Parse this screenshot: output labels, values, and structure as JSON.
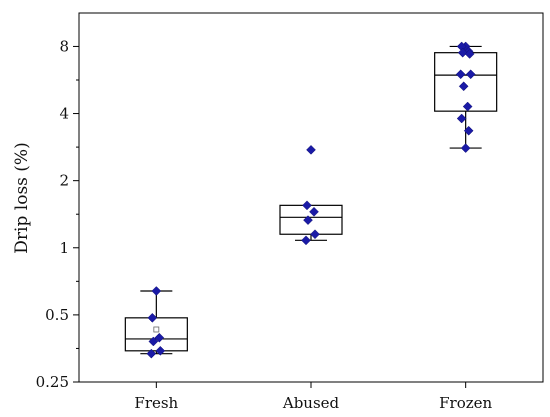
{
  "chart_data": {
    "type": "box",
    "ylabel": "Drip loss (%)",
    "xlabel": "",
    "yscale": "log2",
    "ylim": [
      0.25,
      11.3
    ],
    "yticks": [
      {
        "value": 0.25,
        "label": "0.25"
      },
      {
        "value": 0.5,
        "label": "0.5"
      },
      {
        "value": 1,
        "label": "1"
      },
      {
        "value": 2,
        "label": "2"
      },
      {
        "value": 4,
        "label": "4"
      },
      {
        "value": 8,
        "label": "8"
      }
    ],
    "categories": [
      "Fresh",
      "Abused",
      "Frozen"
    ],
    "boxes": [
      {
        "category": "Fresh",
        "whisker_low": 0.335,
        "q1": 0.345,
        "median": 0.39,
        "q3": 0.485,
        "whisker_high": 0.64,
        "mean": 0.43,
        "points": [
          0.64,
          0.485,
          0.395,
          0.38,
          0.345,
          0.335
        ]
      },
      {
        "category": "Abused",
        "whisker_low": 1.08,
        "q1": 1.15,
        "median": 1.37,
        "q3": 1.55,
        "whisker_high": 1.55,
        "mean": null,
        "points": [
          2.75,
          1.55,
          1.45,
          1.33,
          1.15,
          1.08
        ]
      },
      {
        "category": "Frozen",
        "whisker_low": 2.8,
        "q1": 4.1,
        "median": 5.95,
        "q3": 7.5,
        "whisker_high": 8.0,
        "mean": null,
        "points": [
          8.0,
          8.0,
          7.6,
          7.5,
          7.4,
          6.0,
          6.0,
          5.3,
          4.3,
          3.8,
          3.35,
          2.8
        ]
      }
    ],
    "grid": false,
    "colors": {
      "point": "#1a1aa6",
      "box": "#000000",
      "mean": "#666666"
    }
  }
}
